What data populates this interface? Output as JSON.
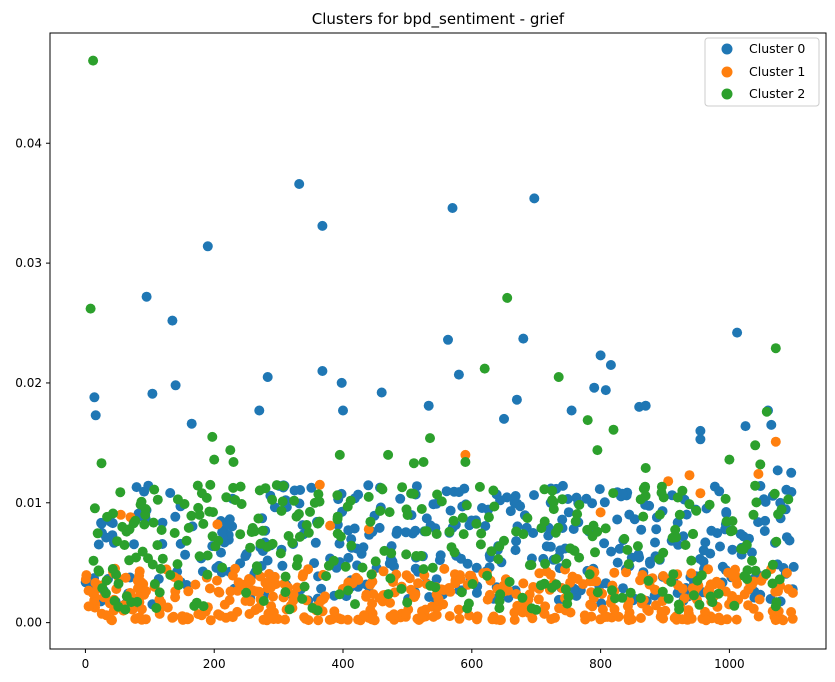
{
  "chart_data": {
    "type": "scatter",
    "title": "Clusters for bpd_sentiment - grief",
    "xlabel": "",
    "ylabel": "",
    "xlim": [
      -55,
      1150
    ],
    "ylim": [
      -0.0022,
      0.0492
    ],
    "xticks": [
      0,
      200,
      400,
      600,
      800,
      1000
    ],
    "xtick_labels": [
      "0",
      "200",
      "400",
      "600",
      "800",
      "1000"
    ],
    "yticks": [
      0.0,
      0.01,
      0.02,
      0.03,
      0.04
    ],
    "ytick_labels": [
      "0.00",
      "0.01",
      "0.02",
      "0.03",
      "0.04"
    ],
    "legend_position": "top-right",
    "grid": false,
    "series": [
      {
        "name": "Cluster 0",
        "color": "#1f77b4",
        "n_points": 380,
        "seed": 11,
        "base_range": [
          0.0015,
          0.0115
        ],
        "peaks": [
          {
            "x": 95,
            "y": 0.0272
          },
          {
            "x": 135,
            "y": 0.0252
          },
          {
            "x": 190,
            "y": 0.0314
          },
          {
            "x": 332,
            "y": 0.0366
          },
          {
            "x": 368,
            "y": 0.0331
          },
          {
            "x": 570,
            "y": 0.0346
          },
          {
            "x": 697,
            "y": 0.0354
          },
          {
            "x": 563,
            "y": 0.0236
          },
          {
            "x": 680,
            "y": 0.0237
          },
          {
            "x": 1012,
            "y": 0.0242
          },
          {
            "x": 14,
            "y": 0.0188
          },
          {
            "x": 16,
            "y": 0.0173
          },
          {
            "x": 104,
            "y": 0.0191
          },
          {
            "x": 140,
            "y": 0.0198
          },
          {
            "x": 283,
            "y": 0.0205
          },
          {
            "x": 368,
            "y": 0.021
          },
          {
            "x": 398,
            "y": 0.02
          },
          {
            "x": 460,
            "y": 0.0192
          },
          {
            "x": 580,
            "y": 0.0207
          },
          {
            "x": 800,
            "y": 0.0223
          },
          {
            "x": 816,
            "y": 0.0215
          },
          {
            "x": 790,
            "y": 0.0196
          },
          {
            "x": 808,
            "y": 0.0194
          },
          {
            "x": 670,
            "y": 0.0186
          },
          {
            "x": 860,
            "y": 0.018
          },
          {
            "x": 870,
            "y": 0.0181
          },
          {
            "x": 1060,
            "y": 0.0177
          },
          {
            "x": 1065,
            "y": 0.0165
          },
          {
            "x": 1025,
            "y": 0.0164
          },
          {
            "x": 955,
            "y": 0.016
          },
          {
            "x": 955,
            "y": 0.0153
          },
          {
            "x": 533,
            "y": 0.0181
          },
          {
            "x": 755,
            "y": 0.0177
          },
          {
            "x": 270,
            "y": 0.0177
          },
          {
            "x": 165,
            "y": 0.0166
          },
          {
            "x": 400,
            "y": 0.0177
          },
          {
            "x": 650,
            "y": 0.017
          },
          {
            "x": 1075,
            "y": 0.0127
          },
          {
            "x": 1096,
            "y": 0.0125
          }
        ]
      },
      {
        "name": "Cluster 1",
        "color": "#ff7f0e",
        "n_points": 440,
        "seed": 23,
        "base_range": [
          0.0002,
          0.0045
        ],
        "peaks": [
          {
            "x": 364,
            "y": 0.0115
          },
          {
            "x": 590,
            "y": 0.014
          },
          {
            "x": 1072,
            "y": 0.0151
          },
          {
            "x": 1045,
            "y": 0.0124
          },
          {
            "x": 938,
            "y": 0.0123
          },
          {
            "x": 905,
            "y": 0.0118
          },
          {
            "x": 955,
            "y": 0.0108
          },
          {
            "x": 800,
            "y": 0.0092
          },
          {
            "x": 55,
            "y": 0.009
          },
          {
            "x": 70,
            "y": 0.0088
          },
          {
            "x": 205,
            "y": 0.0082
          },
          {
            "x": 380,
            "y": 0.0081
          },
          {
            "x": 440,
            "y": 0.0078
          }
        ]
      },
      {
        "name": "Cluster 2",
        "color": "#2ca02c",
        "n_points": 320,
        "seed": 37,
        "base_range": [
          0.001,
          0.0115
        ],
        "peaks": [
          {
            "x": 12,
            "y": 0.0469
          },
          {
            "x": 8,
            "y": 0.0262
          },
          {
            "x": 655,
            "y": 0.0271
          },
          {
            "x": 1072,
            "y": 0.0229
          },
          {
            "x": 620,
            "y": 0.0212
          },
          {
            "x": 735,
            "y": 0.0205
          },
          {
            "x": 1058,
            "y": 0.0176
          },
          {
            "x": 780,
            "y": 0.0169
          },
          {
            "x": 820,
            "y": 0.0161
          },
          {
            "x": 197,
            "y": 0.0155
          },
          {
            "x": 535,
            "y": 0.0154
          },
          {
            "x": 1040,
            "y": 0.0148
          },
          {
            "x": 225,
            "y": 0.0144
          },
          {
            "x": 395,
            "y": 0.014
          },
          {
            "x": 470,
            "y": 0.014
          },
          {
            "x": 795,
            "y": 0.0144
          },
          {
            "x": 1000,
            "y": 0.0136
          },
          {
            "x": 590,
            "y": 0.0134
          },
          {
            "x": 510,
            "y": 0.0133
          },
          {
            "x": 525,
            "y": 0.0134
          },
          {
            "x": 25,
            "y": 0.0133
          },
          {
            "x": 1048,
            "y": 0.0132
          },
          {
            "x": 870,
            "y": 0.0129
          },
          {
            "x": 200,
            "y": 0.0136
          },
          {
            "x": 230,
            "y": 0.0134
          }
        ]
      }
    ]
  }
}
